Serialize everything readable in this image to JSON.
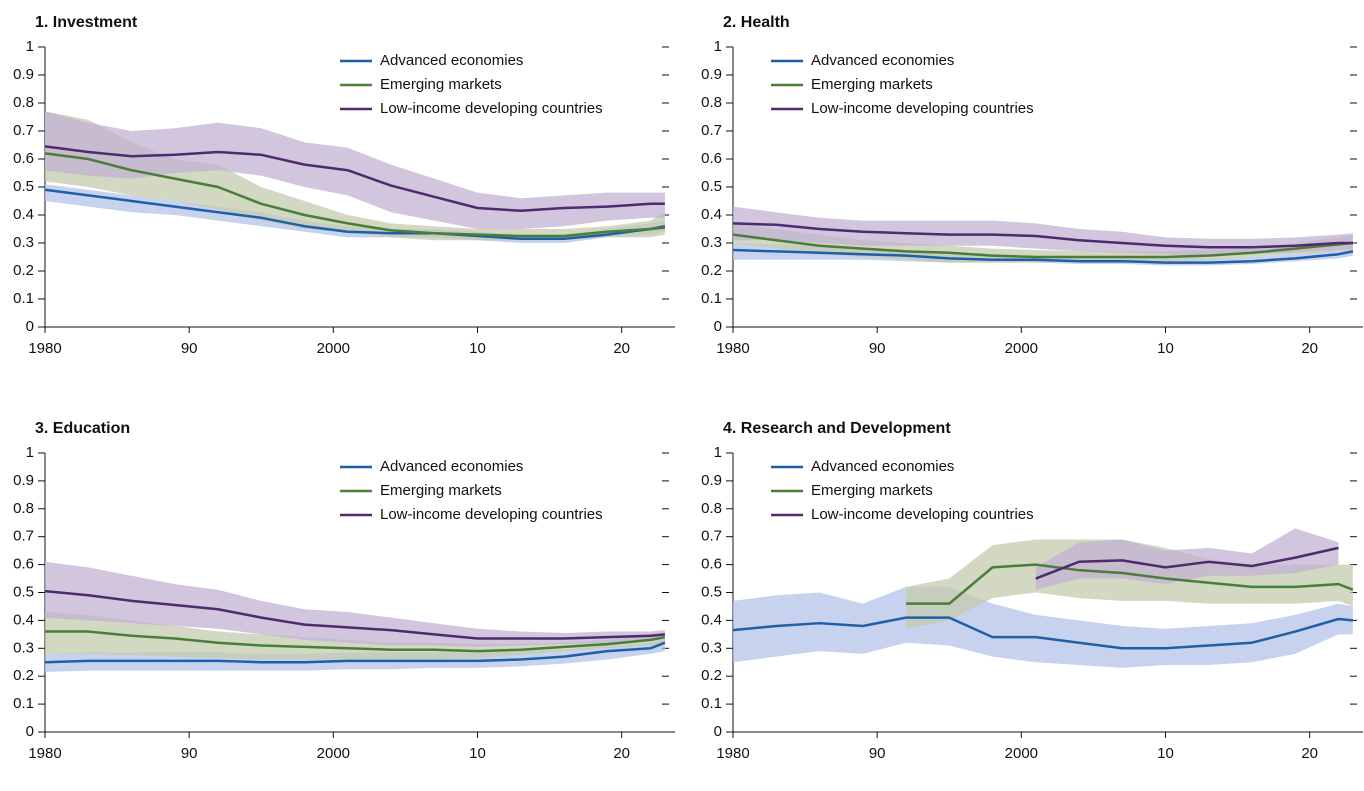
{
  "chart_data": [
    {
      "type": "line",
      "title": "1. Investment",
      "x": [
        1980,
        1983,
        1986,
        1989,
        1992,
        1995,
        1998,
        2001,
        2004,
        2007,
        2010,
        2013,
        2016,
        2019,
        2022,
        2023
      ],
      "xlim": [
        1980,
        2023.7
      ],
      "xticks": [
        1980,
        {
          "value": 1990,
          "label": "90"
        },
        2000,
        {
          "value": 2010,
          "label": "10"
        },
        {
          "value": 2020,
          "label": "20"
        }
      ],
      "ylim": [
        0,
        1
      ],
      "yticks": [
        0,
        0.1,
        0.2,
        0.3,
        0.4,
        0.5,
        0.6,
        0.7,
        0.8,
        0.9,
        1
      ],
      "legend": "upper right",
      "series": [
        {
          "name": "Advanced economies",
          "color": "#1f5fa8",
          "band_color": "#b4c4e8",
          "values": [
            0.49,
            0.47,
            0.45,
            0.43,
            0.41,
            0.39,
            0.36,
            0.34,
            0.335,
            0.335,
            0.325,
            0.315,
            0.315,
            0.33,
            0.35,
            0.36
          ],
          "lower": [
            0.45,
            0.43,
            0.41,
            0.4,
            0.38,
            0.36,
            0.34,
            0.32,
            0.32,
            0.32,
            0.31,
            0.3,
            0.3,
            0.32,
            0.33,
            0.34
          ],
          "upper": [
            0.51,
            0.49,
            0.47,
            0.45,
            0.43,
            0.41,
            0.38,
            0.36,
            0.35,
            0.35,
            0.34,
            0.33,
            0.33,
            0.35,
            0.37,
            0.38
          ]
        },
        {
          "name": "Emerging markets",
          "color": "#4a7d3a",
          "band_color": "#c4cbad",
          "values": [
            0.62,
            0.6,
            0.56,
            0.53,
            0.5,
            0.44,
            0.4,
            0.37,
            0.345,
            0.335,
            0.33,
            0.325,
            0.325,
            0.34,
            0.35,
            0.355
          ],
          "lower": [
            0.52,
            0.5,
            0.47,
            0.45,
            0.42,
            0.38,
            0.35,
            0.34,
            0.32,
            0.31,
            0.31,
            0.31,
            0.31,
            0.32,
            0.32,
            0.33
          ],
          "upper": [
            0.77,
            0.74,
            0.66,
            0.6,
            0.58,
            0.5,
            0.45,
            0.4,
            0.37,
            0.36,
            0.35,
            0.35,
            0.35,
            0.36,
            0.38,
            0.41
          ]
        },
        {
          "name": "Low-income developing countries",
          "color": "#4e2a6e",
          "band_color": "#c3b3d3",
          "values": [
            0.645,
            0.625,
            0.61,
            0.615,
            0.625,
            0.615,
            0.58,
            0.56,
            0.505,
            0.465,
            0.425,
            0.415,
            0.425,
            0.43,
            0.44,
            0.44
          ],
          "lower": [
            0.56,
            0.54,
            0.53,
            0.55,
            0.56,
            0.54,
            0.5,
            0.47,
            0.41,
            0.38,
            0.35,
            0.35,
            0.36,
            0.38,
            0.39,
            0.39
          ],
          "upper": [
            0.77,
            0.73,
            0.7,
            0.71,
            0.73,
            0.71,
            0.66,
            0.64,
            0.58,
            0.53,
            0.48,
            0.46,
            0.47,
            0.48,
            0.48,
            0.48
          ]
        }
      ]
    },
    {
      "type": "line",
      "title": "2. Health",
      "x": [
        1980,
        1983,
        1986,
        1989,
        1992,
        1995,
        1998,
        2001,
        2004,
        2007,
        2010,
        2013,
        2016,
        2019,
        2022,
        2023
      ],
      "xlim": [
        1980,
        2023.7
      ],
      "xticks": [
        1980,
        {
          "value": 1990,
          "label": "90"
        },
        2000,
        {
          "value": 2010,
          "label": "10"
        },
        {
          "value": 2020,
          "label": "20"
        }
      ],
      "ylim": [
        0,
        1
      ],
      "yticks": [
        0,
        0.1,
        0.2,
        0.3,
        0.4,
        0.5,
        0.6,
        0.7,
        0.8,
        0.9,
        1
      ],
      "legend": "upper left",
      "series": [
        {
          "name": "Advanced economies",
          "color": "#1f5fa8",
          "band_color": "#b4c4e8",
          "values": [
            0.275,
            0.27,
            0.265,
            0.26,
            0.255,
            0.245,
            0.24,
            0.24,
            0.235,
            0.235,
            0.23,
            0.23,
            0.235,
            0.245,
            0.26,
            0.27
          ],
          "lower": [
            0.24,
            0.24,
            0.24,
            0.24,
            0.235,
            0.23,
            0.23,
            0.23,
            0.225,
            0.225,
            0.22,
            0.22,
            0.225,
            0.235,
            0.245,
            0.255
          ],
          "upper": [
            0.3,
            0.295,
            0.29,
            0.285,
            0.275,
            0.26,
            0.255,
            0.255,
            0.25,
            0.25,
            0.245,
            0.245,
            0.25,
            0.26,
            0.275,
            0.29
          ]
        },
        {
          "name": "Emerging markets",
          "color": "#4a7d3a",
          "band_color": "#c4cbad",
          "values": [
            0.33,
            0.31,
            0.29,
            0.28,
            0.27,
            0.265,
            0.255,
            0.25,
            0.25,
            0.25,
            0.25,
            0.255,
            0.265,
            0.28,
            0.295,
            0.3
          ],
          "lower": [
            0.3,
            0.28,
            0.26,
            0.25,
            0.24,
            0.23,
            0.23,
            0.23,
            0.235,
            0.235,
            0.235,
            0.24,
            0.25,
            0.26,
            0.27,
            0.275
          ],
          "upper": [
            0.37,
            0.35,
            0.33,
            0.31,
            0.3,
            0.29,
            0.28,
            0.275,
            0.27,
            0.27,
            0.27,
            0.275,
            0.28,
            0.3,
            0.32,
            0.33
          ]
        },
        {
          "name": "Low-income developing countries",
          "color": "#4e2a6e",
          "band_color": "#c3b3d3",
          "values": [
            0.37,
            0.365,
            0.35,
            0.34,
            0.335,
            0.33,
            0.33,
            0.325,
            0.31,
            0.3,
            0.29,
            0.285,
            0.285,
            0.29,
            0.3,
            0.3
          ],
          "lower": [
            0.31,
            0.31,
            0.3,
            0.29,
            0.29,
            0.29,
            0.29,
            0.28,
            0.27,
            0.265,
            0.26,
            0.255,
            0.26,
            0.265,
            0.275,
            0.28
          ],
          "upper": [
            0.43,
            0.41,
            0.39,
            0.38,
            0.38,
            0.38,
            0.38,
            0.37,
            0.35,
            0.34,
            0.32,
            0.315,
            0.315,
            0.32,
            0.33,
            0.335
          ]
        }
      ]
    },
    {
      "type": "line",
      "title": "3. Education",
      "x": [
        1980,
        1983,
        1986,
        1989,
        1992,
        1995,
        1998,
        2001,
        2004,
        2007,
        2010,
        2013,
        2016,
        2019,
        2022,
        2023
      ],
      "xlim": [
        1980,
        2023.7
      ],
      "xticks": [
        1980,
        {
          "value": 1990,
          "label": "90"
        },
        2000,
        {
          "value": 2010,
          "label": "10"
        },
        {
          "value": 2020,
          "label": "20"
        }
      ],
      "ylim": [
        0,
        1
      ],
      "yticks": [
        0,
        0.1,
        0.2,
        0.3,
        0.4,
        0.5,
        0.6,
        0.7,
        0.8,
        0.9,
        1
      ],
      "legend": "upper right",
      "series": [
        {
          "name": "Advanced economies",
          "color": "#1f5fa8",
          "band_color": "#b4c4e8",
          "values": [
            0.25,
            0.255,
            0.255,
            0.255,
            0.255,
            0.25,
            0.25,
            0.255,
            0.255,
            0.255,
            0.255,
            0.26,
            0.27,
            0.29,
            0.3,
            0.32
          ],
          "lower": [
            0.215,
            0.22,
            0.22,
            0.22,
            0.22,
            0.22,
            0.22,
            0.225,
            0.225,
            0.23,
            0.23,
            0.235,
            0.245,
            0.26,
            0.28,
            0.29
          ],
          "upper": [
            0.28,
            0.285,
            0.285,
            0.285,
            0.285,
            0.28,
            0.28,
            0.285,
            0.285,
            0.285,
            0.285,
            0.29,
            0.295,
            0.31,
            0.32,
            0.335
          ]
        },
        {
          "name": "Emerging markets",
          "color": "#4a7d3a",
          "band_color": "#c4cbad",
          "values": [
            0.36,
            0.36,
            0.345,
            0.335,
            0.32,
            0.31,
            0.305,
            0.3,
            0.295,
            0.295,
            0.29,
            0.295,
            0.305,
            0.315,
            0.33,
            0.34
          ],
          "lower": [
            0.28,
            0.28,
            0.275,
            0.27,
            0.265,
            0.26,
            0.26,
            0.26,
            0.26,
            0.26,
            0.265,
            0.275,
            0.29,
            0.3,
            0.31,
            0.32
          ],
          "upper": [
            0.43,
            0.42,
            0.4,
            0.38,
            0.36,
            0.35,
            0.34,
            0.33,
            0.32,
            0.32,
            0.315,
            0.315,
            0.32,
            0.33,
            0.345,
            0.35
          ]
        },
        {
          "name": "Low-income developing countries",
          "color": "#4e2a6e",
          "band_color": "#c3b3d3",
          "values": [
            0.505,
            0.49,
            0.47,
            0.455,
            0.44,
            0.41,
            0.385,
            0.375,
            0.365,
            0.35,
            0.335,
            0.335,
            0.335,
            0.34,
            0.345,
            0.35
          ],
          "lower": [
            0.41,
            0.4,
            0.39,
            0.38,
            0.37,
            0.35,
            0.33,
            0.32,
            0.31,
            0.31,
            0.305,
            0.31,
            0.315,
            0.32,
            0.33,
            0.335
          ],
          "upper": [
            0.61,
            0.59,
            0.56,
            0.53,
            0.51,
            0.47,
            0.44,
            0.43,
            0.41,
            0.39,
            0.37,
            0.36,
            0.355,
            0.36,
            0.36,
            0.365
          ]
        }
      ]
    },
    {
      "type": "line",
      "title": "4. Research and Development",
      "x": [
        1980,
        1983,
        1986,
        1989,
        1992,
        1995,
        1998,
        2001,
        2004,
        2007,
        2010,
        2013,
        2016,
        2019,
        2022,
        2023
      ],
      "xlim": [
        1980,
        2023.7
      ],
      "xticks": [
        1980,
        {
          "value": 1990,
          "label": "90"
        },
        2000,
        {
          "value": 2010,
          "label": "10"
        },
        {
          "value": 2020,
          "label": "20"
        }
      ],
      "ylim": [
        0,
        1
      ],
      "yticks": [
        0,
        0.1,
        0.2,
        0.3,
        0.4,
        0.5,
        0.6,
        0.7,
        0.8,
        0.9,
        1
      ],
      "legend": "upper left",
      "series": [
        {
          "name": "Advanced economies",
          "color": "#1f5fa8",
          "band_color": "#b4c4e8",
          "values": [
            0.365,
            0.38,
            0.39,
            0.38,
            0.41,
            0.41,
            0.34,
            0.34,
            0.32,
            0.3,
            0.3,
            0.31,
            0.32,
            0.36,
            0.405,
            0.4
          ],
          "lower": [
            0.25,
            0.27,
            0.29,
            0.28,
            0.32,
            0.31,
            0.27,
            0.25,
            0.24,
            0.23,
            0.24,
            0.24,
            0.25,
            0.28,
            0.35,
            0.35
          ],
          "upper": [
            0.47,
            0.49,
            0.5,
            0.46,
            0.52,
            0.52,
            0.46,
            0.42,
            0.4,
            0.38,
            0.37,
            0.38,
            0.39,
            0.42,
            0.46,
            0.45
          ]
        },
        {
          "name": "Emerging markets",
          "color": "#4a7d3a",
          "band_color": "#c4cbad",
          "values": [
            null,
            null,
            null,
            null,
            0.46,
            0.46,
            0.59,
            0.6,
            0.58,
            0.57,
            0.55,
            0.535,
            0.52,
            0.52,
            0.53,
            0.51
          ],
          "lower": [
            null,
            null,
            null,
            null,
            0.37,
            0.4,
            0.48,
            0.5,
            0.48,
            0.47,
            0.47,
            0.46,
            0.46,
            0.46,
            0.47,
            0.45
          ],
          "upper": [
            null,
            null,
            null,
            null,
            0.52,
            0.55,
            0.67,
            0.69,
            0.69,
            0.69,
            0.66,
            0.62,
            0.6,
            0.6,
            0.6,
            0.6
          ]
        },
        {
          "name": "Low-income developing countries",
          "color": "#4e2a6e",
          "band_color": "#c3b3d3",
          "values": [
            null,
            null,
            null,
            null,
            null,
            null,
            null,
            0.55,
            0.61,
            0.615,
            0.59,
            0.61,
            0.595,
            0.625,
            0.66,
            null
          ],
          "lower": [
            null,
            null,
            null,
            null,
            null,
            null,
            null,
            0.51,
            0.55,
            0.55,
            0.53,
            0.56,
            0.56,
            0.57,
            0.6,
            null
          ],
          "upper": [
            null,
            null,
            null,
            null,
            null,
            null,
            null,
            0.59,
            0.68,
            0.69,
            0.65,
            0.66,
            0.64,
            0.73,
            0.68,
            null
          ]
        }
      ]
    }
  ]
}
